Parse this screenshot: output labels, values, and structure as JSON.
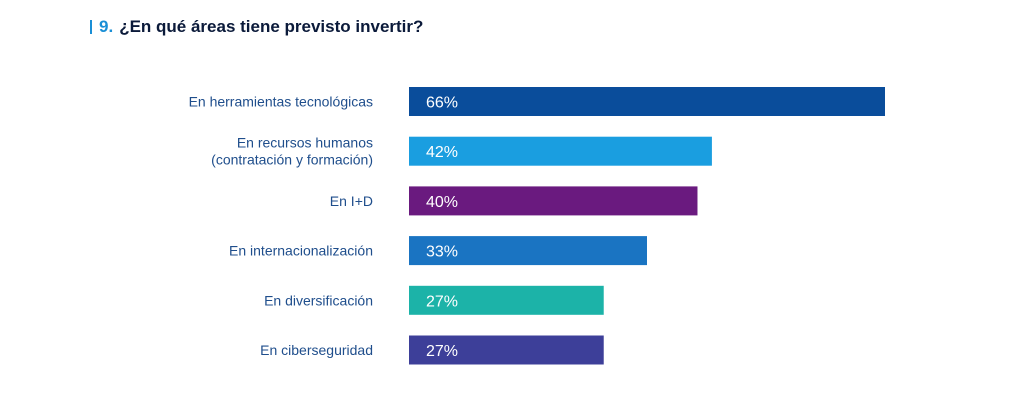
{
  "header": {
    "number": "9.",
    "title": "¿En qué áreas tiene previsto invertir?"
  },
  "chart_data": {
    "type": "bar",
    "orientation": "horizontal",
    "categories": [
      [
        "En herramientas tecnológicas"
      ],
      [
        "En recursos humanos",
        "(contratación y formación)"
      ],
      [
        "En I+D"
      ],
      [
        "En internacionalización"
      ],
      [
        "En diversificación"
      ],
      [
        "En ciberseguridad"
      ]
    ],
    "values": [
      66,
      42,
      40,
      33,
      27,
      27
    ],
    "value_labels": [
      "66%",
      "42%",
      "40%",
      "33%",
      "27%",
      "27%"
    ],
    "colors": [
      "#0a4d9b",
      "#1a9ee0",
      "#6a1a7f",
      "#1a74c2",
      "#1cb3a8",
      "#3d3f99"
    ],
    "unit": "%",
    "xlim": [
      0,
      100
    ],
    "grid": false,
    "legend": "none"
  }
}
